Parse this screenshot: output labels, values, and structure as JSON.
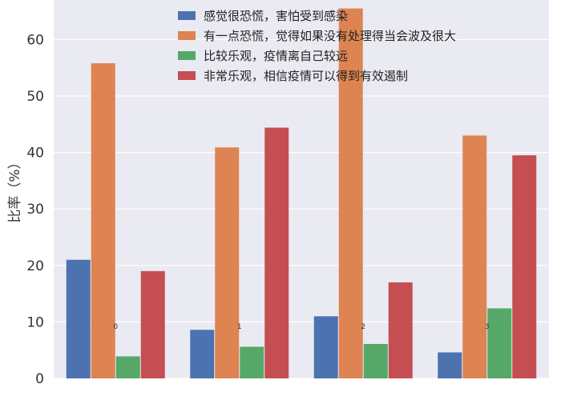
{
  "chart_data": {
    "type": "bar",
    "title": "",
    "xlabel": "",
    "ylabel": "比率（%）",
    "categories": [
      "0",
      "1",
      "2",
      "3"
    ],
    "ylim": [
      0,
      67
    ],
    "yticks": [
      0,
      10,
      20,
      30,
      40,
      50,
      60
    ],
    "grid": true,
    "legend_position": "top",
    "series": [
      {
        "name": "感觉很恐慌，害怕受到感染",
        "color": "#4c72b0",
        "values": [
          21.0,
          8.6,
          11.0,
          4.6
        ]
      },
      {
        "name": "有一点恐慌，觉得如果没有处理得当会波及很大",
        "color": "#dd8452",
        "values": [
          55.8,
          40.9,
          65.5,
          43.0
        ]
      },
      {
        "name": "比较乐观，疫情离自己较远",
        "color": "#55a868",
        "values": [
          3.9,
          5.6,
          6.1,
          12.4
        ]
      },
      {
        "name": "非常乐观，相信疫情可以得到有效遏制",
        "color": "#c44e52",
        "values": [
          19.0,
          44.4,
          17.0,
          39.5
        ]
      }
    ],
    "background_color": "#eaeaf2",
    "gridline_color": "#ffffff"
  }
}
